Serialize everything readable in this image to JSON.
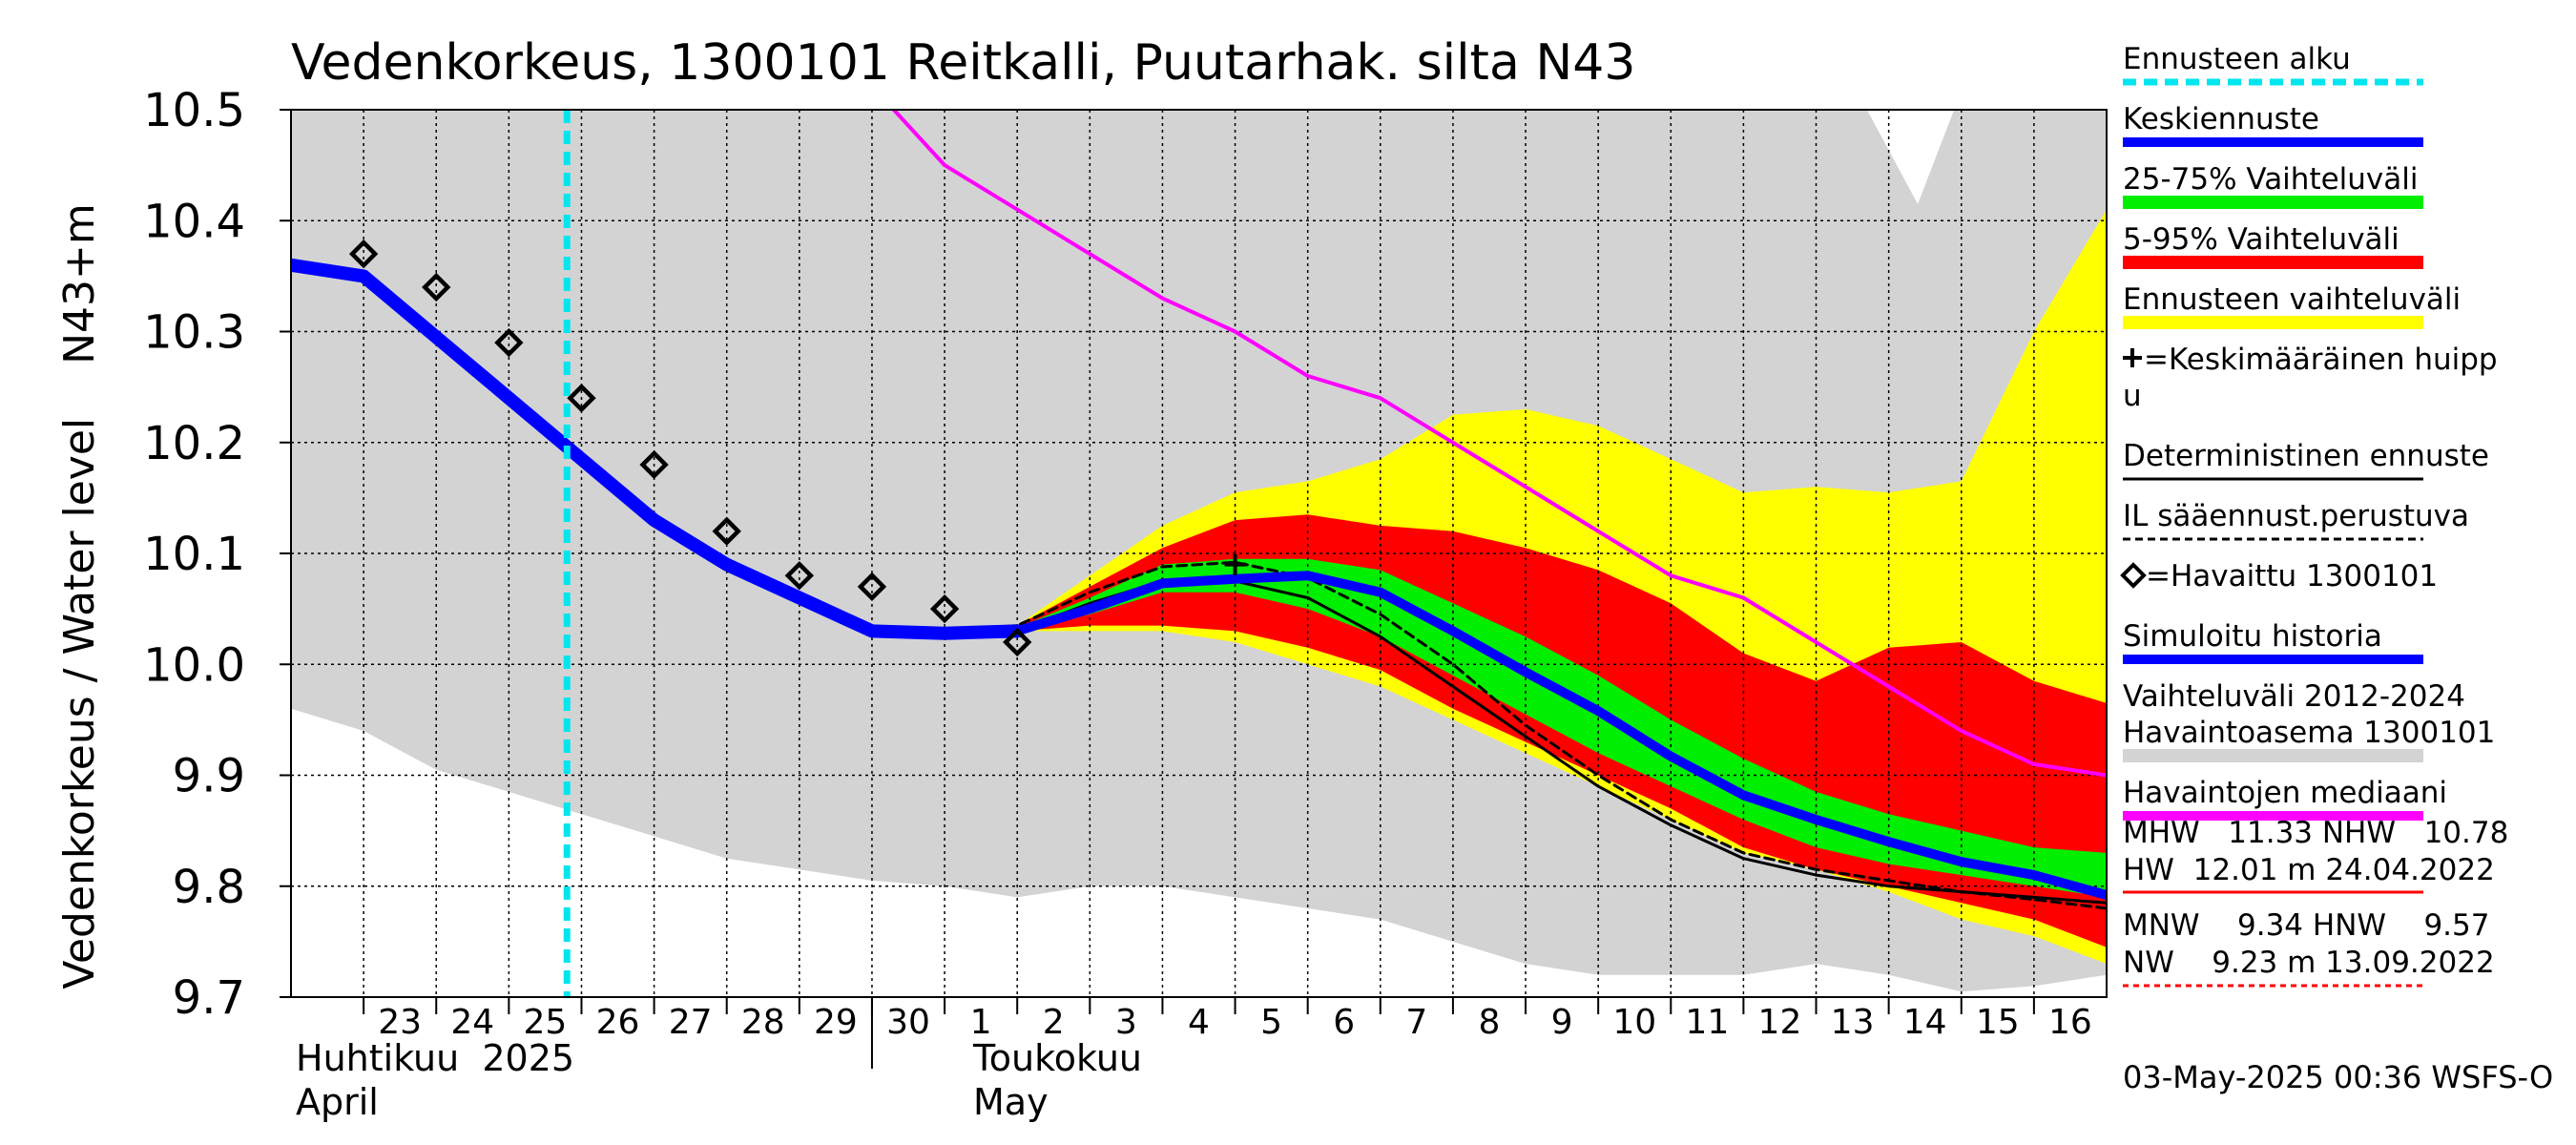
{
  "chart_data": {
    "type": "line",
    "title": "Vedenkorkeus, 1300101 Reitkalli, Puutarhak. silta N43",
    "ylabel": "Vedenkorkeus / Water level    N43+m",
    "ylim": [
      9.7,
      10.5
    ],
    "yticks": [
      "10.5",
      "10.4",
      "10.3",
      "10.2",
      "10.1",
      "10.0",
      "9.9",
      "9.8",
      "9.7"
    ],
    "yticks_values": [
      10.5,
      10.4,
      10.3,
      10.2,
      10.1,
      10.0,
      9.9,
      9.8,
      9.7
    ],
    "xticks": [
      "23",
      "24",
      "25",
      "26",
      "27",
      "28",
      "29",
      "30",
      "1",
      "2",
      "3",
      "4",
      "5",
      "6",
      "7",
      "8",
      "9",
      "10",
      "11",
      "12",
      "13",
      "14",
      "15",
      "16"
    ],
    "month_labels": {
      "april_fi": "Huhtikuu  2025",
      "april_en": "April",
      "may_fi": "Toukokuu",
      "may_en": "May"
    },
    "forecast_start_day": 2.8,
    "grid": true,
    "legend_placement": "right",
    "series": [
      {
        "name": "Vaihteluväli 2012-2024  Havaintoasema 1300101",
        "kind": "band",
        "color": "#d3d3d3",
        "x": [
          -1,
          0,
          1,
          2,
          3,
          4,
          5,
          6,
          7,
          8,
          9,
          10,
          11,
          12,
          13,
          14,
          15,
          16,
          17,
          18,
          19,
          20,
          21,
          22,
          23,
          24
        ],
        "upper": [
          10.5,
          10.5,
          10.5,
          10.5,
          10.5,
          10.5,
          10.5,
          10.5,
          10.5,
          10.5,
          10.5,
          10.5,
          10.5,
          10.5,
          10.5,
          10.5,
          10.5,
          10.5,
          10.5,
          10.5,
          10.5,
          10.5,
          10.5,
          10.5,
          10.5,
          10.5
        ],
        "lower": [
          9.96,
          9.94,
          9.905,
          9.885,
          9.865,
          9.845,
          9.825,
          9.815,
          9.805,
          9.8,
          9.79,
          9.8,
          9.8,
          9.79,
          9.78,
          9.77,
          9.75,
          9.73,
          9.72,
          9.72,
          9.72,
          9.73,
          9.72,
          9.705,
          9.71,
          9.72
        ]
      },
      {
        "name": "Ennusteen vaihteluväli",
        "kind": "band",
        "color": "#ffff00",
        "x": [
          8,
          9,
          10,
          11,
          12,
          13,
          14,
          15,
          16,
          17,
          18,
          19,
          20,
          21,
          22,
          23,
          24
        ],
        "upper": [
          10.03,
          10.035,
          10.08,
          10.125,
          10.155,
          10.165,
          10.185,
          10.225,
          10.23,
          10.215,
          10.185,
          10.155,
          10.16,
          10.155,
          10.165,
          10.3,
          10.41
        ],
        "lower": [
          10.03,
          10.03,
          10.03,
          10.03,
          10.02,
          10.0,
          9.98,
          9.95,
          9.92,
          9.89,
          9.86,
          9.83,
          9.815,
          9.795,
          9.77,
          9.755,
          9.73
        ]
      },
      {
        "name": "5-95% Vaihteluväli",
        "kind": "band",
        "color": "#ff0000",
        "x": [
          8,
          9,
          10,
          11,
          12,
          13,
          14,
          15,
          16,
          17,
          18,
          19,
          20,
          21,
          22,
          23,
          24
        ],
        "upper": [
          10.03,
          10.035,
          10.07,
          10.105,
          10.13,
          10.135,
          10.125,
          10.12,
          10.105,
          10.085,
          10.055,
          10.01,
          9.985,
          10.015,
          10.02,
          9.985,
          9.965
        ],
        "lower": [
          10.03,
          10.03,
          10.035,
          10.035,
          10.03,
          10.015,
          9.995,
          9.96,
          9.93,
          9.9,
          9.87,
          9.835,
          9.815,
          9.8,
          9.785,
          9.77,
          9.745
        ]
      },
      {
        "name": "25-75% Vaihteluväli",
        "kind": "band",
        "color": "#00ee00",
        "x": [
          8,
          9,
          10,
          11,
          12,
          13,
          14,
          15,
          16,
          17,
          18,
          19,
          20,
          21,
          22,
          23,
          24
        ],
        "upper": [
          10.03,
          10.033,
          10.06,
          10.09,
          10.095,
          10.095,
          10.085,
          10.055,
          10.025,
          9.99,
          9.95,
          9.915,
          9.885,
          9.865,
          9.85,
          9.835,
          9.83
        ],
        "lower": [
          10.03,
          10.03,
          10.045,
          10.065,
          10.065,
          10.05,
          10.025,
          9.99,
          9.955,
          9.92,
          9.89,
          9.86,
          9.835,
          9.82,
          9.81,
          9.8,
          9.79
        ]
      },
      {
        "name": "Havaintojen mediaani",
        "kind": "line",
        "color": "#ff00ff",
        "x": [
          7.3,
          8,
          9,
          10,
          11,
          12,
          13,
          14,
          15,
          16,
          17,
          18,
          19,
          20,
          21,
          22,
          23,
          24
        ],
        "y": [
          10.5,
          10.45,
          10.41,
          10.37,
          10.33,
          10.3,
          10.26,
          10.24,
          10.2,
          10.16,
          10.12,
          10.08,
          10.06,
          10.02,
          9.98,
          9.94,
          9.91,
          9.9
        ]
      },
      {
        "name": "Deterministinen ennuste",
        "kind": "line",
        "color": "#000000",
        "x": [
          8,
          9,
          10,
          11,
          12,
          13,
          14,
          15,
          16,
          17,
          18,
          19,
          20,
          21,
          22,
          23,
          24
        ],
        "y": [
          10.03,
          10.03,
          10.055,
          10.075,
          10.075,
          10.06,
          10.025,
          9.98,
          9.935,
          9.89,
          9.855,
          9.825,
          9.81,
          9.8,
          9.795,
          9.79,
          9.785
        ]
      },
      {
        "name": "IL sääennust.perustuva",
        "kind": "dashed",
        "color": "#000000",
        "x": [
          8,
          9,
          10,
          11,
          12,
          13,
          14,
          15,
          16,
          17,
          18,
          19,
          20,
          21,
          22,
          23,
          24
        ],
        "y": [
          10.03,
          10.035,
          10.065,
          10.088,
          10.092,
          10.078,
          10.045,
          10.0,
          9.945,
          9.9,
          9.86,
          9.83,
          9.815,
          9.805,
          9.795,
          9.788,
          9.78
        ]
      },
      {
        "name": "Simuloitu historia",
        "kind": "line",
        "color": "#0000ff",
        "x": [
          -1,
          0,
          1,
          2,
          3,
          4,
          5,
          6,
          7,
          8,
          9
        ],
        "y": [
          10.36,
          10.35,
          10.295,
          10.24,
          10.185,
          10.13,
          10.09,
          10.06,
          10.03,
          10.028,
          10.03
        ]
      },
      {
        "name": "Keskiennuste",
        "kind": "line",
        "color": "#0000ff",
        "x": [
          9,
          10,
          11,
          12,
          13,
          14,
          15,
          16,
          17,
          18,
          19,
          20,
          21,
          22,
          23,
          24
        ],
        "y": [
          10.03,
          10.05,
          10.073,
          10.077,
          10.08,
          10.065,
          10.03,
          9.993,
          9.958,
          9.917,
          9.882,
          9.86,
          9.84,
          9.822,
          9.81,
          9.792
        ]
      },
      {
        "name": "Havaittu 1300101",
        "kind": "markers",
        "color": "#000000",
        "x": [
          0,
          1,
          2,
          3,
          4,
          5,
          6,
          7,
          8,
          9
        ],
        "y": [
          10.37,
          10.34,
          10.29,
          10.24,
          10.18,
          10.12,
          10.08,
          10.07,
          10.05,
          10.02
        ]
      },
      {
        "name": "Keskimääräinen huippu",
        "kind": "peak",
        "color": "#000000",
        "x": [
          12
        ],
        "y": [
          10.09
        ]
      }
    ],
    "legend": [
      {
        "label": "Ennusteen alku",
        "style": "dashed",
        "color": "#00e5ee"
      },
      {
        "label": "Keskiennuste",
        "style": "line",
        "color": "#0000ff"
      },
      {
        "label": "25-75% Vaihteluväli",
        "style": "band",
        "color": "#00ee00"
      },
      {
        "label": "5-95% Vaihteluväli",
        "style": "band",
        "color": "#ff0000"
      },
      {
        "label": "Ennusteen vaihteluväli",
        "style": "band",
        "color": "#ffff00"
      },
      {
        "label": "=Keskimääräinen huippu",
        "style": "plus",
        "color": "#000000"
      },
      {
        "label": "Deterministinen ennuste",
        "style": "thin",
        "color": "#000000"
      },
      {
        "label": "IL sääennust.perustuva",
        "style": "dashed-thin",
        "color": "#000000"
      },
      {
        "label": "=Havaittu 1300101",
        "style": "diamond",
        "color": "#000000"
      },
      {
        "label": "Simuloitu historia",
        "style": "line",
        "color": "#0000ff"
      },
      {
        "label": "Vaihteluväli 2012-2024",
        "label2": " Havaintoasema 1300101",
        "style": "band",
        "color": "#d3d3d3"
      },
      {
        "label": "Havaintojen mediaani",
        "style": "line",
        "color": "#ff00ff"
      }
    ],
    "stats": {
      "mhw_line": "MHW   11.33 NHW   10.78",
      "hw_line": "HW  12.01 m 24.04.2022",
      "mnw_line": "MNW    9.34 HNW    9.57",
      "nw_line": "NW    9.23 m 13.09.2022"
    },
    "footer": "03-May-2025 00:36 WSFS-O"
  }
}
